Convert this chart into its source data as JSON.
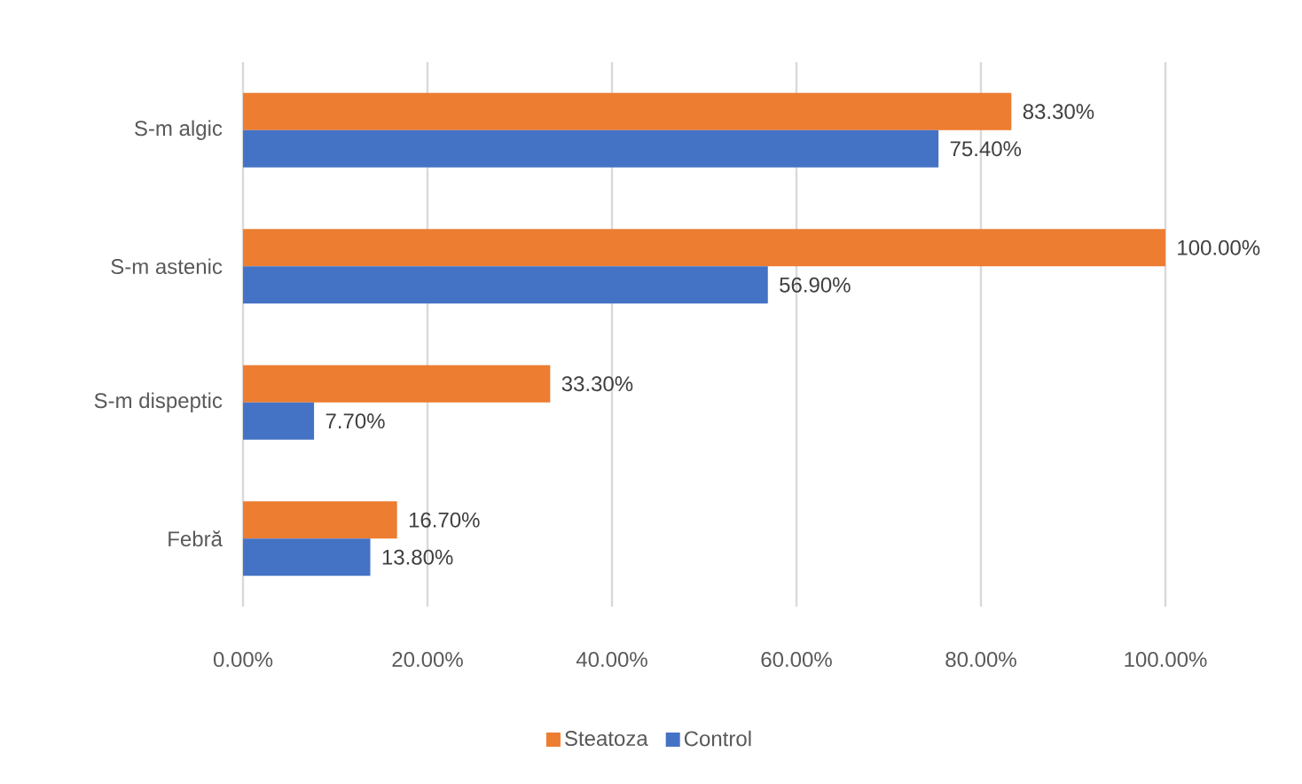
{
  "chart_data": {
    "type": "bar",
    "orientation": "horizontal",
    "categories": [
      "S-m algic",
      "S-m astenic",
      "S-m dispeptic",
      "Febră"
    ],
    "series": [
      {
        "name": "Steatoza",
        "color": "#ed7d31",
        "values": [
          83.3,
          100,
          33.3,
          16.7
        ],
        "value_labels": [
          "83.30%",
          "100.00%",
          "33.30%",
          "16.70%"
        ]
      },
      {
        "name": "Control",
        "color": "#4472c4",
        "values": [
          75.4,
          56.9,
          7.7,
          13.8
        ],
        "value_labels": [
          "75.40%",
          "56.90%",
          "7.70%",
          "13.80%"
        ]
      }
    ],
    "xlim": [
      0,
      100
    ],
    "xticks": [
      {
        "value": 0,
        "label": "0.00%"
      },
      {
        "value": 20,
        "label": "20.00%"
      },
      {
        "value": 40,
        "label": "40.00%"
      },
      {
        "value": 60,
        "label": "60.00%"
      },
      {
        "value": 80,
        "label": "80.00%"
      },
      {
        "value": 100,
        "label": "100.00%"
      }
    ],
    "grid": "x",
    "legend": "bottom"
  }
}
